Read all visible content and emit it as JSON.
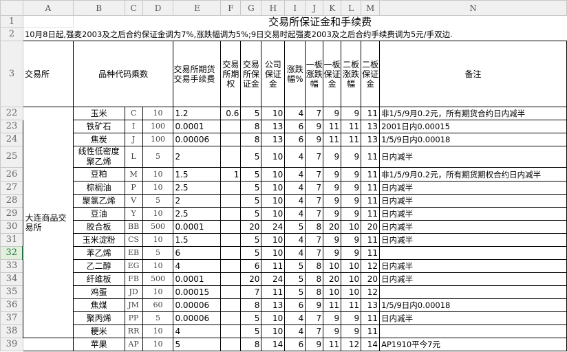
{
  "columns": [
    "A",
    "B",
    "C",
    "D",
    "E",
    "F",
    "G",
    "H",
    "I",
    "J",
    "K",
    "L",
    "M",
    "N"
  ],
  "title": "交易所保证金和手续费",
  "notice": "10月8日起,强麦2003及之后合约保证金调为7%,涨跌幅调为5%;9日交易时起强麦2003及之后合约手续费调为5元/手双边.",
  "headers": {
    "exchange": "交易所",
    "variety": "品种代码乘数",
    "fee": "交易所期货交易手续费",
    "option_fee": "交易所期权",
    "exch_margin": "交易所保证金",
    "co_margin": "公司保证金",
    "limit": "涨跌幅%",
    "b1_limit": "一板涨跌幅",
    "b1_margin": "一板保证金",
    "b2_limit": "二板涨跌幅",
    "b2_margin": "二板保证金",
    "note": "备注"
  },
  "header_row_numbers": [
    "1",
    "2",
    "3"
  ],
  "selected_row": "32",
  "groups": [
    {
      "exchange": "大连商品交易所",
      "rows": [
        [
          "22",
          "玉米",
          "C",
          "10",
          "1.2",
          "0.6",
          "5",
          "10",
          "4",
          "7",
          "9",
          "9",
          "11",
          "非1/5/9月0.2元，所有期货合约日内减半"
        ],
        [
          "23",
          "铁矿石",
          "I",
          "100",
          "0.0001",
          "",
          "8",
          "13",
          "6",
          "9",
          "11",
          "11",
          "13",
          "2001日内0.00015"
        ],
        [
          "24",
          "焦炭",
          "J",
          "100",
          "0.00006",
          "",
          "8",
          "13",
          "6",
          "9",
          "11",
          "11",
          "13",
          "1/5/9日内0.00018"
        ],
        [
          "25",
          "线性低密度聚乙烯",
          "L",
          "5",
          "2",
          "",
          "5",
          "10",
          "4",
          "7",
          "9",
          "9",
          "11",
          "日内减半"
        ],
        [
          "26",
          "豆粕",
          "M",
          "10",
          "1.5",
          "1",
          "5",
          "10",
          "4",
          "7",
          "9",
          "9",
          "11",
          "非1/5/9月0.2元，所有期货期权合约日内减半"
        ],
        [
          "27",
          "棕榈油",
          "P",
          "10",
          "2.5",
          "",
          "5",
          "10",
          "4",
          "7",
          "9",
          "9",
          "11",
          "日内减半"
        ],
        [
          "28",
          "聚氯乙烯",
          "V",
          "5",
          "2",
          "",
          "5",
          "10",
          "4",
          "7",
          "9",
          "9",
          "11",
          "日内减半"
        ],
        [
          "29",
          "豆油",
          "Y",
          "10",
          "2.5",
          "",
          "5",
          "10",
          "4",
          "7",
          "9",
          "9",
          "11",
          "日内减半"
        ],
        [
          "30",
          "胶合板",
          "BB",
          "500",
          "0.0001",
          "",
          "20",
          "24",
          "5",
          "8",
          "20",
          "10",
          "20",
          "日内减半"
        ],
        [
          "31",
          "玉米淀粉",
          "CS",
          "10",
          "1.5",
          "",
          "5",
          "10",
          "4",
          "7",
          "9",
          "9",
          "11",
          "日内减半"
        ],
        [
          "32",
          "苯乙烯",
          "EB",
          "5",
          "6",
          "",
          "5",
          "10",
          "4",
          "7",
          "9",
          "9",
          "11",
          ""
        ],
        [
          "33",
          "乙二醇",
          "EG",
          "10",
          "4",
          "",
          "6",
          "11",
          "5",
          "8",
          "10",
          "10",
          "12",
          "日内减半"
        ],
        [
          "34",
          "纤维板",
          "FB",
          "500",
          "0.0001",
          "",
          "20",
          "24",
          "5",
          "8",
          "20",
          "10",
          "20",
          "日内减半"
        ],
        [
          "35",
          "鸡蛋",
          "JD",
          "10",
          "0.00015",
          "",
          "7",
          "11",
          "5",
          "8",
          "10",
          "10",
          "12",
          ""
        ],
        [
          "36",
          "焦煤",
          "JM",
          "60",
          "0.00006",
          "",
          "8",
          "13",
          "6",
          "9",
          "11",
          "11",
          "13",
          "1/5/9日内0.00018"
        ],
        [
          "37",
          "聚丙烯",
          "PP",
          "5",
          "0.00006",
          "",
          "5",
          "10",
          "4",
          "7",
          "9",
          "9",
          "11",
          "日内减半"
        ],
        [
          "38",
          "粳米",
          "RR",
          "10",
          "4",
          "",
          "5",
          "10",
          "4",
          "7",
          "9",
          "9",
          "11",
          ""
        ]
      ]
    },
    {
      "exchange": "",
      "rows": [
        [
          "39",
          "苹果",
          "AP",
          "10",
          "5",
          "",
          "8",
          "14",
          "6",
          "9",
          "11",
          "12",
          "14",
          "AP1910平今7元"
        ]
      ]
    }
  ]
}
